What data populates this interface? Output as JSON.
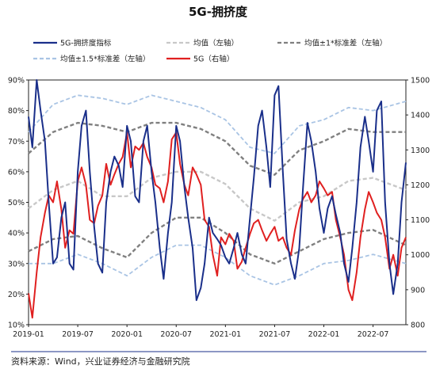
{
  "chart_data": {
    "type": "line",
    "title": "5G-拥挤度",
    "source": "资料来源：Wind，兴业证券经济与金融研究院",
    "x_ticks": [
      "2019-01",
      "2019-07",
      "2020-01",
      "2020-07",
      "2021-01",
      "2021-07",
      "2022-01",
      "2022-07"
    ],
    "x_range": [
      "2019-01",
      "2022-11"
    ],
    "y_left": {
      "ticks": [
        "10%",
        "20%",
        "30%",
        "40%",
        "50%",
        "60%",
        "70%",
        "80%",
        "90%"
      ],
      "range": [
        10,
        90
      ]
    },
    "y_right": {
      "ticks": [
        "800",
        "900",
        "1000",
        "1100",
        "1200",
        "1300",
        "1400",
        "1500"
      ],
      "range": [
        800,
        1500
      ]
    },
    "legend": [
      {
        "label": "5G-拥挤度指标",
        "color": "#1a2f8a",
        "dash": "solid"
      },
      {
        "label": "均值（左轴）",
        "color": "#c8c8c8",
        "dash": "dash"
      },
      {
        "label": "均值±1*标准差（左轴）",
        "color": "#808080",
        "dash": "dash"
      },
      {
        "label": "均值±1.5*标准差（左轴）",
        "color": "#a9c4e4",
        "dash": "dash"
      },
      {
        "label": "5G（右轴）",
        "color": "#e02020",
        "dash": "solid"
      }
    ],
    "series": [
      {
        "axis": "left",
        "x": [
          "2019-01",
          "2019-01-15",
          "2019-02",
          "2019-02-15",
          "2019-03",
          "2019-03-15",
          "2019-04",
          "2019-04-15",
          "2019-05",
          "2019-05-15",
          "2019-06",
          "2019-06-15",
          "2019-07",
          "2019-07-15",
          "2019-08",
          "2019-08-15",
          "2019-09",
          "2019-09-15",
          "2019-10",
          "2019-10-15",
          "2019-11",
          "2019-11-15",
          "2019-12",
          "2019-12-15",
          "2020-01",
          "2020-01-15",
          "2020-02",
          "2020-02-15",
          "2020-03",
          "2020-03-15",
          "2020-04",
          "2020-04-15",
          "2020-05",
          "2020-05-15",
          "2020-06",
          "2020-06-15",
          "2020-07",
          "2020-07-15",
          "2020-08",
          "2020-08-15",
          "2020-09",
          "2020-09-15",
          "2020-10",
          "2020-10-15",
          "2020-11",
          "2020-11-15",
          "2020-12",
          "2020-12-15",
          "2021-01",
          "2021-01-15",
          "2021-02",
          "2021-02-15",
          "2021-03",
          "2021-03-15",
          "2021-04",
          "2021-04-15",
          "2021-05",
          "2021-05-15",
          "2021-06",
          "2021-06-15",
          "2021-07",
          "2021-07-15",
          "2021-08",
          "2021-08-15",
          "2021-09",
          "2021-09-15",
          "2021-10",
          "2021-10-15",
          "2021-11",
          "2021-11-15",
          "2021-12",
          "2021-12-15",
          "2022-01",
          "2022-01-15",
          "2022-02",
          "2022-02-15",
          "2022-03",
          "2022-03-15",
          "2022-04",
          "2022-04-15",
          "2022-05",
          "2022-05-15",
          "2022-06",
          "2022-06-15",
          "2022-07",
          "2022-07-15",
          "2022-08",
          "2022-08-15",
          "2022-09",
          "2022-09-15",
          "2022-10",
          "2022-10-15",
          "2022-11"
        ],
        "values": [
          78,
          68,
          90,
          80,
          70,
          50,
          30,
          32,
          45,
          50,
          30,
          28,
          60,
          75,
          80,
          60,
          42,
          30,
          27,
          50,
          60,
          65,
          62,
          55,
          75,
          70,
          52,
          50,
          70,
          75,
          60,
          50,
          35,
          25,
          40,
          50,
          75,
          70,
          55,
          45,
          35,
          18,
          22,
          30,
          45,
          40,
          38,
          36,
          32,
          30,
          35,
          40,
          33,
          30,
          45,
          58,
          75,
          80,
          68,
          55,
          85,
          88,
          60,
          38,
          30,
          25,
          35,
          55,
          76,
          70,
          60,
          48,
          40,
          48,
          52,
          46,
          40,
          30,
          24,
          35,
          50,
          68,
          78,
          70,
          60,
          80,
          83,
          50,
          30,
          20,
          30,
          50,
          63
        ]
      },
      {
        "axis": "right",
        "x": [
          "2019-01",
          "2019-01-15",
          "2019-02",
          "2019-02-15",
          "2019-03",
          "2019-03-15",
          "2019-04",
          "2019-04-15",
          "2019-05",
          "2019-05-15",
          "2019-06",
          "2019-06-15",
          "2019-07",
          "2019-07-15",
          "2019-08",
          "2019-08-15",
          "2019-09",
          "2019-09-15",
          "2019-10",
          "2019-10-15",
          "2019-11",
          "2019-11-15",
          "2019-12",
          "2019-12-15",
          "2020-01",
          "2020-01-15",
          "2020-02",
          "2020-02-15",
          "2020-03",
          "2020-03-15",
          "2020-04",
          "2020-04-15",
          "2020-05",
          "2020-05-15",
          "2020-06",
          "2020-06-15",
          "2020-07",
          "2020-07-15",
          "2020-08",
          "2020-08-15",
          "2020-09",
          "2020-09-15",
          "2020-10",
          "2020-10-15",
          "2020-11",
          "2020-11-15",
          "2020-12",
          "2020-12-15",
          "2021-01",
          "2021-01-15",
          "2021-02",
          "2021-02-15",
          "2021-03",
          "2021-03-15",
          "2021-04",
          "2021-04-15",
          "2021-05",
          "2021-05-15",
          "2021-06",
          "2021-06-15",
          "2021-07",
          "2021-07-15",
          "2021-08",
          "2021-08-15",
          "2021-09",
          "2021-09-15",
          "2021-10",
          "2021-10-15",
          "2021-11",
          "2021-11-15",
          "2021-12",
          "2021-12-15",
          "2022-01",
          "2022-01-15",
          "2022-02",
          "2022-02-15",
          "2022-03",
          "2022-03-15",
          "2022-04",
          "2022-04-15",
          "2022-05",
          "2022-05-15",
          "2022-06",
          "2022-06-15",
          "2022-07",
          "2022-07-15",
          "2022-08",
          "2022-08-15",
          "2022-09",
          "2022-09-15",
          "2022-10",
          "2022-10-15",
          "2022-11"
        ],
        "values": [
          890,
          820,
          950,
          1050,
          1120,
          1170,
          1150,
          1210,
          1130,
          1020,
          1070,
          1060,
          1210,
          1250,
          1200,
          1100,
          1090,
          1140,
          1170,
          1260,
          1200,
          1230,
          1260,
          1280,
          1350,
          1250,
          1310,
          1300,
          1320,
          1280,
          1250,
          1200,
          1190,
          1150,
          1210,
          1330,
          1350,
          1260,
          1200,
          1170,
          1250,
          1230,
          1200,
          1100,
          1080,
          1000,
          940,
          1050,
          1030,
          1060,
          1040,
          960,
          980,
          1020,
          1060,
          1090,
          1100,
          1070,
          1040,
          1060,
          1080,
          1040,
          1050,
          1020,
          1000,
          1070,
          1130,
          1160,
          1180,
          1150,
          1170,
          1210,
          1190,
          1170,
          1180,
          1100,
          1050,
          1000,
          900,
          870,
          950,
          1050,
          1130,
          1180,
          1150,
          1120,
          1100,
          1050,
          960,
          1000,
          940,
          1020,
          1050
        ]
      },
      {
        "axis": "left",
        "x": [
          "2019-01",
          "2019-04",
          "2019-07",
          "2019-10",
          "2020-01",
          "2020-04",
          "2020-07",
          "2020-10",
          "2021-01",
          "2021-04",
          "2021-07",
          "2021-10",
          "2022-01",
          "2022-04",
          "2022-07",
          "2022-11"
        ],
        "values": [
          48,
          54,
          57,
          52,
          52,
          58,
          60,
          60,
          56,
          48,
          44,
          50,
          52,
          57,
          58,
          54
        ]
      },
      {
        "axis": "left",
        "x": [
          "2019-01",
          "2019-04",
          "2019-07",
          "2019-10",
          "2020-01",
          "2020-04",
          "2020-07",
          "2020-10",
          "2021-01",
          "2021-04",
          "2021-07",
          "2021-10",
          "2022-01",
          "2022-04",
          "2022-07",
          "2022-11"
        ],
        "values": [
          66,
          73,
          76,
          75,
          73,
          76,
          76,
          74,
          70,
          62,
          59,
          67,
          70,
          74,
          73,
          73
        ]
      },
      {
        "axis": "left",
        "x": [
          "2019-01",
          "2019-04",
          "2019-07",
          "2019-10",
          "2020-01",
          "2020-04",
          "2020-07",
          "2020-10",
          "2021-01",
          "2021-04",
          "2021-07",
          "2021-10",
          "2022-01",
          "2022-04",
          "2022-07",
          "2022-11"
        ],
        "values": [
          34,
          38,
          39,
          35,
          32,
          40,
          45,
          45,
          40,
          33,
          30,
          34,
          38,
          40,
          41,
          36
        ]
      },
      {
        "axis": "left",
        "x": [
          "2019-01",
          "2019-04",
          "2019-07",
          "2019-10",
          "2020-01",
          "2020-04",
          "2020-07",
          "2020-10",
          "2021-01",
          "2021-04",
          "2021-07",
          "2021-10",
          "2022-01",
          "2022-04",
          "2022-07",
          "2022-11"
        ],
        "values": [
          73,
          82,
          85,
          84,
          82,
          85,
          83,
          81,
          77,
          68,
          66,
          75,
          77,
          81,
          80,
          83
        ]
      },
      {
        "axis": "left",
        "x": [
          "2019-01",
          "2019-04",
          "2019-07",
          "2019-10",
          "2020-01",
          "2020-04",
          "2020-07",
          "2020-10",
          "2021-01",
          "2021-04",
          "2021-07",
          "2021-10",
          "2022-01",
          "2022-04",
          "2022-07",
          "2022-11"
        ],
        "values": [
          30,
          30,
          33,
          30,
          26,
          32,
          36,
          36,
          32,
          26,
          23,
          26,
          30,
          31,
          33,
          30
        ]
      }
    ]
  }
}
